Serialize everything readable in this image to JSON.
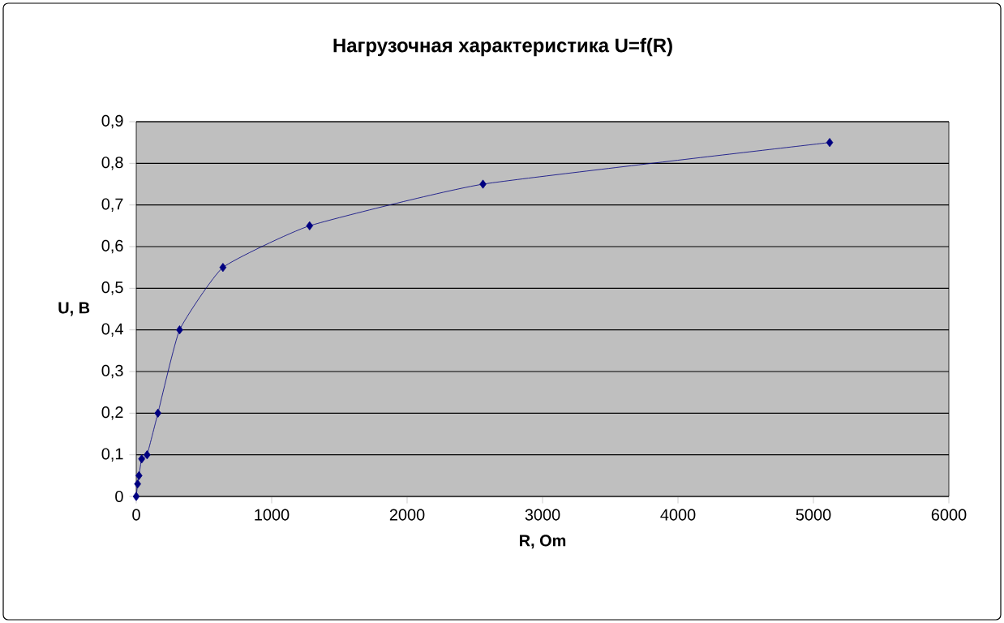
{
  "chart_data": {
    "type": "line",
    "title": "Нагрузочная характеристика U=f(R)",
    "xlabel": "R, Om",
    "ylabel": "U, B",
    "series": [
      {
        "color": "#000080",
        "x": [
          0,
          10,
          20,
          40,
          80,
          160,
          320,
          640,
          1280,
          2560,
          5120
        ],
        "values": [
          0,
          0.03,
          0.05,
          0.09,
          0.1,
          0.2,
          0.4,
          0.55,
          0.65,
          0.75,
          0.85
        ]
      }
    ],
    "xlim": [
      0,
      6000
    ],
    "xticks": [
      0,
      1000,
      2000,
      3000,
      4000,
      5000,
      6000
    ],
    "ylim": [
      0,
      0.9
    ],
    "yticks": [
      0,
      {
        "value": 0.1,
        "label": "0,1"
      },
      {
        "value": 0.2,
        "label": "0,2"
      },
      {
        "value": 0.3,
        "label": "0,3"
      },
      {
        "value": 0.4,
        "label": "0,4"
      },
      {
        "value": 0.5,
        "label": "0,5"
      },
      {
        "value": 0.6,
        "label": "0,6"
      },
      {
        "value": 0.7,
        "label": "0,7"
      },
      {
        "value": 0.8,
        "label": "0,8"
      },
      {
        "value": 0.9,
        "label": "0,9"
      }
    ],
    "grid": "y",
    "marker": "diamond",
    "line_style": "solid"
  }
}
